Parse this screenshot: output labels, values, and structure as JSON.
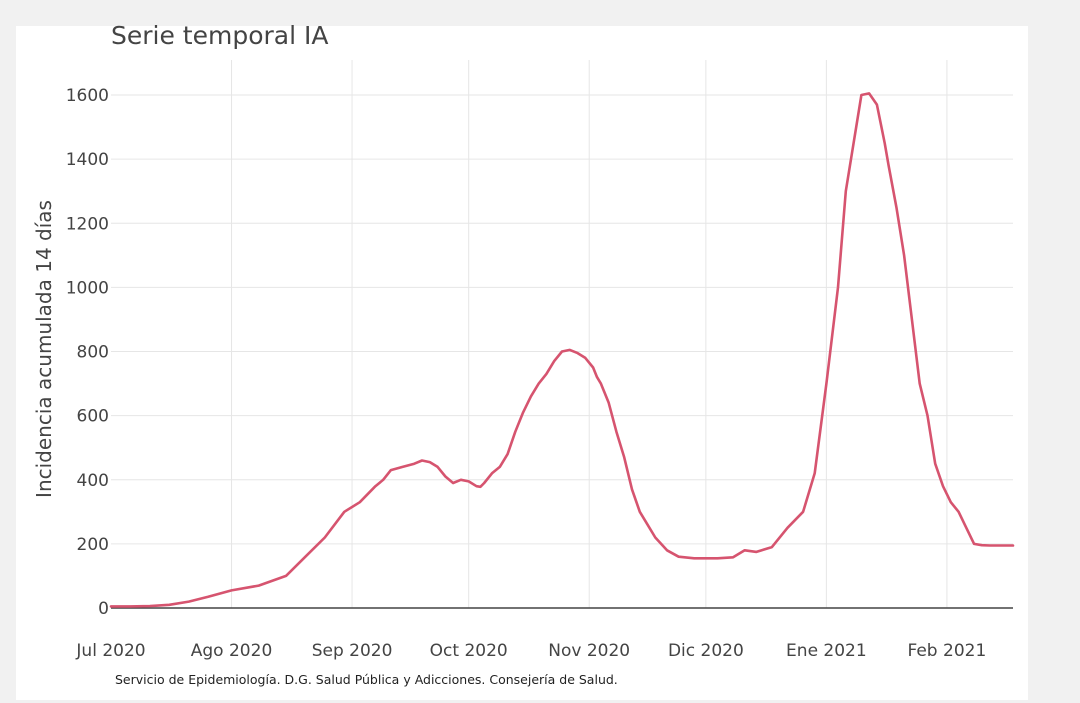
{
  "chart_data": {
    "type": "line",
    "title": "Serie temporal IA",
    "xlabel": "",
    "ylabel": "Incidencia acumulada 14 días",
    "source": "Servicio de Epidemiología. D.G. Salud Pública y Adicciones. Consejería de Salud.",
    "line_color": "#d6546f",
    "grid": true,
    "ylim": [
      0,
      1650
    ],
    "y_ticks": [
      0,
      200,
      400,
      600,
      800,
      1000,
      1200,
      1400,
      1600
    ],
    "x_ticks": [
      {
        "day": 0,
        "label": "Jul 2020"
      },
      {
        "day": 31,
        "label": "Ago 2020"
      },
      {
        "day": 62,
        "label": "Sep 2020"
      },
      {
        "day": 92,
        "label": "Oct 2020"
      },
      {
        "day": 123,
        "label": "Nov 2020"
      },
      {
        "day": 153,
        "label": "Dic 2020"
      },
      {
        "day": 184,
        "label": "Ene 2021"
      },
      {
        "day": 215,
        "label": "Feb 2021"
      }
    ],
    "xlim_days": [
      0,
      232
    ],
    "series": [
      {
        "name": "Incidencia acumulada 14 días",
        "x_days": [
          0,
          5,
          10,
          15,
          20,
          25,
          31,
          38,
          45,
          50,
          55,
          60,
          64,
          68,
          70,
          72,
          75,
          78,
          80,
          82,
          84,
          86,
          88,
          90,
          92,
          94,
          95,
          96,
          98,
          100,
          102,
          104,
          106,
          108,
          110,
          112,
          114,
          116,
          118,
          120,
          122,
          124,
          125,
          126,
          128,
          130,
          132,
          134,
          136,
          138,
          140,
          143,
          146,
          150,
          153,
          156,
          160,
          163,
          166,
          170,
          174,
          178,
          181,
          184,
          187,
          189,
          191,
          193,
          195,
          197,
          199,
          200,
          202,
          204,
          206,
          208,
          210,
          212,
          214,
          216,
          218,
          220,
          222,
          224,
          226,
          228,
          230,
          232
        ],
        "values": [
          5,
          5,
          6,
          10,
          20,
          35,
          55,
          70,
          100,
          160,
          220,
          300,
          330,
          380,
          400,
          430,
          440,
          450,
          460,
          455,
          440,
          410,
          390,
          400,
          395,
          380,
          378,
          390,
          420,
          440,
          480,
          550,
          610,
          660,
          700,
          730,
          770,
          800,
          805,
          795,
          780,
          750,
          720,
          700,
          640,
          550,
          470,
          370,
          300,
          260,
          220,
          180,
          160,
          155,
          155,
          155,
          158,
          180,
          175,
          190,
          250,
          300,
          420,
          700,
          1000,
          1300,
          1450,
          1600,
          1605,
          1570,
          1450,
          1380,
          1250,
          1100,
          900,
          700,
          600,
          450,
          380,
          330,
          300,
          250,
          200,
          196,
          195,
          195,
          195,
          195
        ]
      }
    ]
  }
}
